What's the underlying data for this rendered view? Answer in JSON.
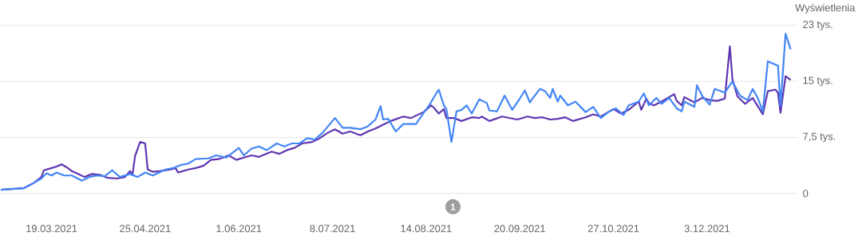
{
  "chart_data": {
    "type": "line",
    "ylabel": "Wyświetlenia",
    "grid": "y",
    "xlim": [
      "2021-02-27",
      "2022-01-08"
    ],
    "ylim": [
      0,
      22.5
    ],
    "xticks": [
      {
        "value": "2021-03-19",
        "label": "19.03.2021"
      },
      {
        "value": "2021-04-25",
        "label": "25.04.2021"
      },
      {
        "value": "2021-06-01",
        "label": "1.06.2021"
      },
      {
        "value": "2021-07-08",
        "label": "8.07.2021"
      },
      {
        "value": "2021-08-14",
        "label": "14.08.2021"
      },
      {
        "value": "2021-09-20",
        "label": "20.09.2021"
      },
      {
        "value": "2021-10-27",
        "label": "27.10.2021"
      },
      {
        "value": "2021-12-03",
        "label": "3.12.2021"
      }
    ],
    "yticks": [
      0,
      {
        "value": 7.5,
        "label": "7,5 tys."
      },
      {
        "value": 15,
        "label": "15 tys."
      },
      {
        "value": 22.5,
        "label": "23 tys."
      }
    ],
    "annotations": [
      "1"
    ],
    "series": [
      {
        "color": "#5e35b1",
        "x": [
          "2021-02-27",
          "2021-03-08",
          "2021-03-12",
          "2021-03-15",
          "2021-03-16",
          "2021-03-18",
          "2021-03-21",
          "2021-03-23",
          "2021-03-25",
          "2021-03-27",
          "2021-03-29",
          "2021-04-01",
          "2021-04-04",
          "2021-04-07",
          "2021-04-10",
          "2021-04-14",
          "2021-04-17",
          "2021-04-19",
          "2021-04-20",
          "2021-04-21",
          "2021-04-23",
          "2021-04-25",
          "2021-04-26",
          "2021-04-28",
          "2021-05-01",
          "2021-05-05",
          "2021-05-07",
          "2021-05-08",
          "2021-05-12",
          "2021-05-15",
          "2021-05-18",
          "2021-05-21",
          "2021-05-24",
          "2021-05-28",
          "2021-05-31",
          "2021-06-03",
          "2021-06-06",
          "2021-06-09",
          "2021-06-14",
          "2021-06-17",
          "2021-06-20",
          "2021-06-23",
          "2021-06-26",
          "2021-06-30",
          "2021-07-03",
          "2021-07-06",
          "2021-07-09",
          "2021-07-12",
          "2021-07-15",
          "2021-07-19",
          "2021-07-22",
          "2021-07-25",
          "2021-07-28",
          "2021-07-31",
          "2021-08-05",
          "2021-08-08",
          "2021-08-13",
          "2021-08-16",
          "2021-08-17",
          "2021-08-19",
          "2021-08-21",
          "2021-08-22",
          "2021-08-25",
          "2021-08-28",
          "2021-09-01",
          "2021-09-04",
          "2021-09-05",
          "2021-09-08",
          "2021-09-13",
          "2021-09-19",
          "2021-09-23",
          "2021-09-26",
          "2021-09-29",
          "2021-10-02",
          "2021-10-05",
          "2021-10-08",
          "2021-10-11",
          "2021-10-16",
          "2021-10-19",
          "2021-10-22",
          "2021-10-27",
          "2021-10-30",
          "2021-11-02",
          "2021-11-06",
          "2021-11-07",
          "2021-11-09",
          "2021-11-10",
          "2021-11-12",
          "2021-11-15",
          "2021-11-20",
          "2021-11-21",
          "2021-11-23",
          "2021-11-24",
          "2021-11-28",
          "2021-12-01",
          "2021-12-04",
          "2021-12-07",
          "2021-12-10",
          "2021-12-12",
          "2021-12-13",
          "2021-12-15",
          "2021-12-18",
          "2021-12-21",
          "2021-12-25",
          "2021-12-27",
          "2021-12-30",
          "2021-12-31",
          "2022-01-01",
          "2022-01-03",
          "2022-01-05"
        ],
        "values": [
          0.5,
          0.7,
          1.4,
          2.2,
          3.1,
          3.3,
          3.6,
          3.9,
          3.5,
          3.0,
          2.7,
          2.2,
          2.6,
          2.5,
          2.1,
          2.0,
          2.2,
          3.0,
          2.5,
          5.0,
          6.9,
          6.7,
          3.2,
          2.9,
          3.0,
          3.2,
          3.4,
          2.8,
          3.2,
          3.4,
          3.7,
          4.5,
          4.6,
          5.1,
          4.5,
          4.8,
          5.1,
          4.9,
          5.6,
          5.3,
          5.8,
          6.1,
          6.7,
          6.9,
          7.4,
          8.1,
          8.6,
          8.0,
          8.3,
          7.8,
          8.3,
          8.7,
          9.2,
          9.7,
          10.3,
          10.1,
          10.9,
          11.8,
          11.5,
          10.7,
          11.3,
          10.1,
          10.1,
          9.7,
          10.2,
          10.1,
          10.3,
          9.7,
          10.3,
          9.9,
          10.3,
          10.1,
          10.2,
          9.9,
          10.0,
          10.2,
          9.7,
          10.2,
          10.6,
          10.3,
          11.3,
          10.7,
          11.2,
          12.3,
          11.2,
          12.7,
          12.1,
          11.8,
          12.3,
          13.3,
          12.4,
          11.8,
          12.9,
          12.2,
          12.8,
          12.5,
          12.4,
          12.7,
          19.7,
          15.3,
          13.0,
          12.0,
          12.8,
          10.6,
          13.7,
          13.9,
          13.5,
          10.8,
          15.7,
          15.2
        ]
      },
      {
        "color": "#4285f4",
        "x": [
          "2021-02-27",
          "2021-03-08",
          "2021-03-12",
          "2021-03-15",
          "2021-03-17",
          "2021-03-19",
          "2021-03-21",
          "2021-03-24",
          "2021-03-27",
          "2021-03-31",
          "2021-04-03",
          "2021-04-06",
          "2021-04-09",
          "2021-04-12",
          "2021-04-15",
          "2021-04-19",
          "2021-04-22",
          "2021-04-25",
          "2021-04-28",
          "2021-05-03",
          "2021-05-06",
          "2021-05-09",
          "2021-05-12",
          "2021-05-15",
          "2021-05-20",
          "2021-05-23",
          "2021-05-27",
          "2021-06-01",
          "2021-06-03",
          "2021-06-06",
          "2021-06-09",
          "2021-06-12",
          "2021-06-16",
          "2021-06-19",
          "2021-06-22",
          "2021-06-25",
          "2021-06-28",
          "2021-07-01",
          "2021-07-04",
          "2021-07-09",
          "2021-07-12",
          "2021-07-15",
          "2021-07-19",
          "2021-07-22",
          "2021-07-25",
          "2021-07-27",
          "2021-07-28",
          "2021-07-30",
          "2021-08-02",
          "2021-08-05",
          "2021-08-10",
          "2021-08-13",
          "2021-08-15",
          "2021-08-18",
          "2021-08-19",
          "2021-08-21",
          "2021-08-22",
          "2021-08-24",
          "2021-08-26",
          "2021-08-28",
          "2021-08-30",
          "2021-09-01",
          "2021-09-04",
          "2021-09-07",
          "2021-09-08",
          "2021-09-11",
          "2021-09-14",
          "2021-09-17",
          "2021-09-20",
          "2021-09-22",
          "2021-09-24",
          "2021-09-25",
          "2021-09-28",
          "2021-09-30",
          "2021-10-02",
          "2021-10-03",
          "2021-10-05",
          "2021-10-06",
          "2021-10-09",
          "2021-10-12",
          "2021-10-16",
          "2021-10-19",
          "2021-10-22",
          "2021-10-25",
          "2021-10-28",
          "2021-10-31",
          "2021-11-02",
          "2021-11-06",
          "2021-11-08",
          "2021-11-10",
          "2021-11-13",
          "2021-11-15",
          "2021-11-18",
          "2021-11-21",
          "2021-11-23",
          "2021-11-24",
          "2021-11-28",
          "2021-11-29",
          "2021-12-01",
          "2021-12-04",
          "2021-12-06",
          "2021-12-10",
          "2021-12-13",
          "2021-12-16",
          "2021-12-19",
          "2021-12-21",
          "2021-12-23",
          "2021-12-25",
          "2021-12-27",
          "2021-12-29",
          "2021-12-31",
          "2022-01-01",
          "2022-01-03",
          "2022-01-05"
        ],
        "values": [
          0.5,
          0.7,
          1.4,
          2.0,
          2.7,
          2.4,
          2.8,
          2.4,
          2.4,
          1.7,
          2.2,
          2.4,
          2.3,
          3.1,
          2.2,
          2.6,
          2.2,
          2.8,
          2.4,
          3.2,
          3.4,
          3.8,
          4.0,
          4.6,
          4.7,
          5.1,
          4.8,
          6.1,
          5.1,
          6.0,
          6.3,
          5.8,
          6.7,
          6.3,
          6.7,
          6.7,
          7.4,
          7.2,
          8.1,
          10.1,
          8.8,
          8.8,
          8.6,
          9.0,
          9.9,
          11.7,
          9.9,
          10.0,
          8.3,
          9.3,
          9.3,
          10.8,
          11.7,
          13.4,
          13.9,
          11.8,
          11.3,
          6.9,
          11.0,
          11.2,
          11.8,
          10.7,
          12.6,
          12.1,
          11.1,
          11.0,
          13.1,
          11.2,
          12.7,
          13.8,
          12.2,
          12.7,
          14.0,
          13.7,
          12.8,
          14.0,
          12.3,
          13.1,
          11.8,
          12.3,
          10.9,
          11.6,
          10.1,
          10.9,
          11.4,
          10.5,
          11.8,
          12.3,
          13.4,
          11.8,
          12.8,
          12.0,
          12.8,
          11.4,
          11.0,
          12.3,
          11.6,
          14.5,
          13.1,
          11.9,
          14.0,
          13.5,
          15.0,
          13.1,
          12.5,
          14.0,
          12.8,
          11.0,
          17.7,
          17.4,
          17.1,
          11.7,
          21.4,
          19.3
        ]
      }
    ]
  }
}
